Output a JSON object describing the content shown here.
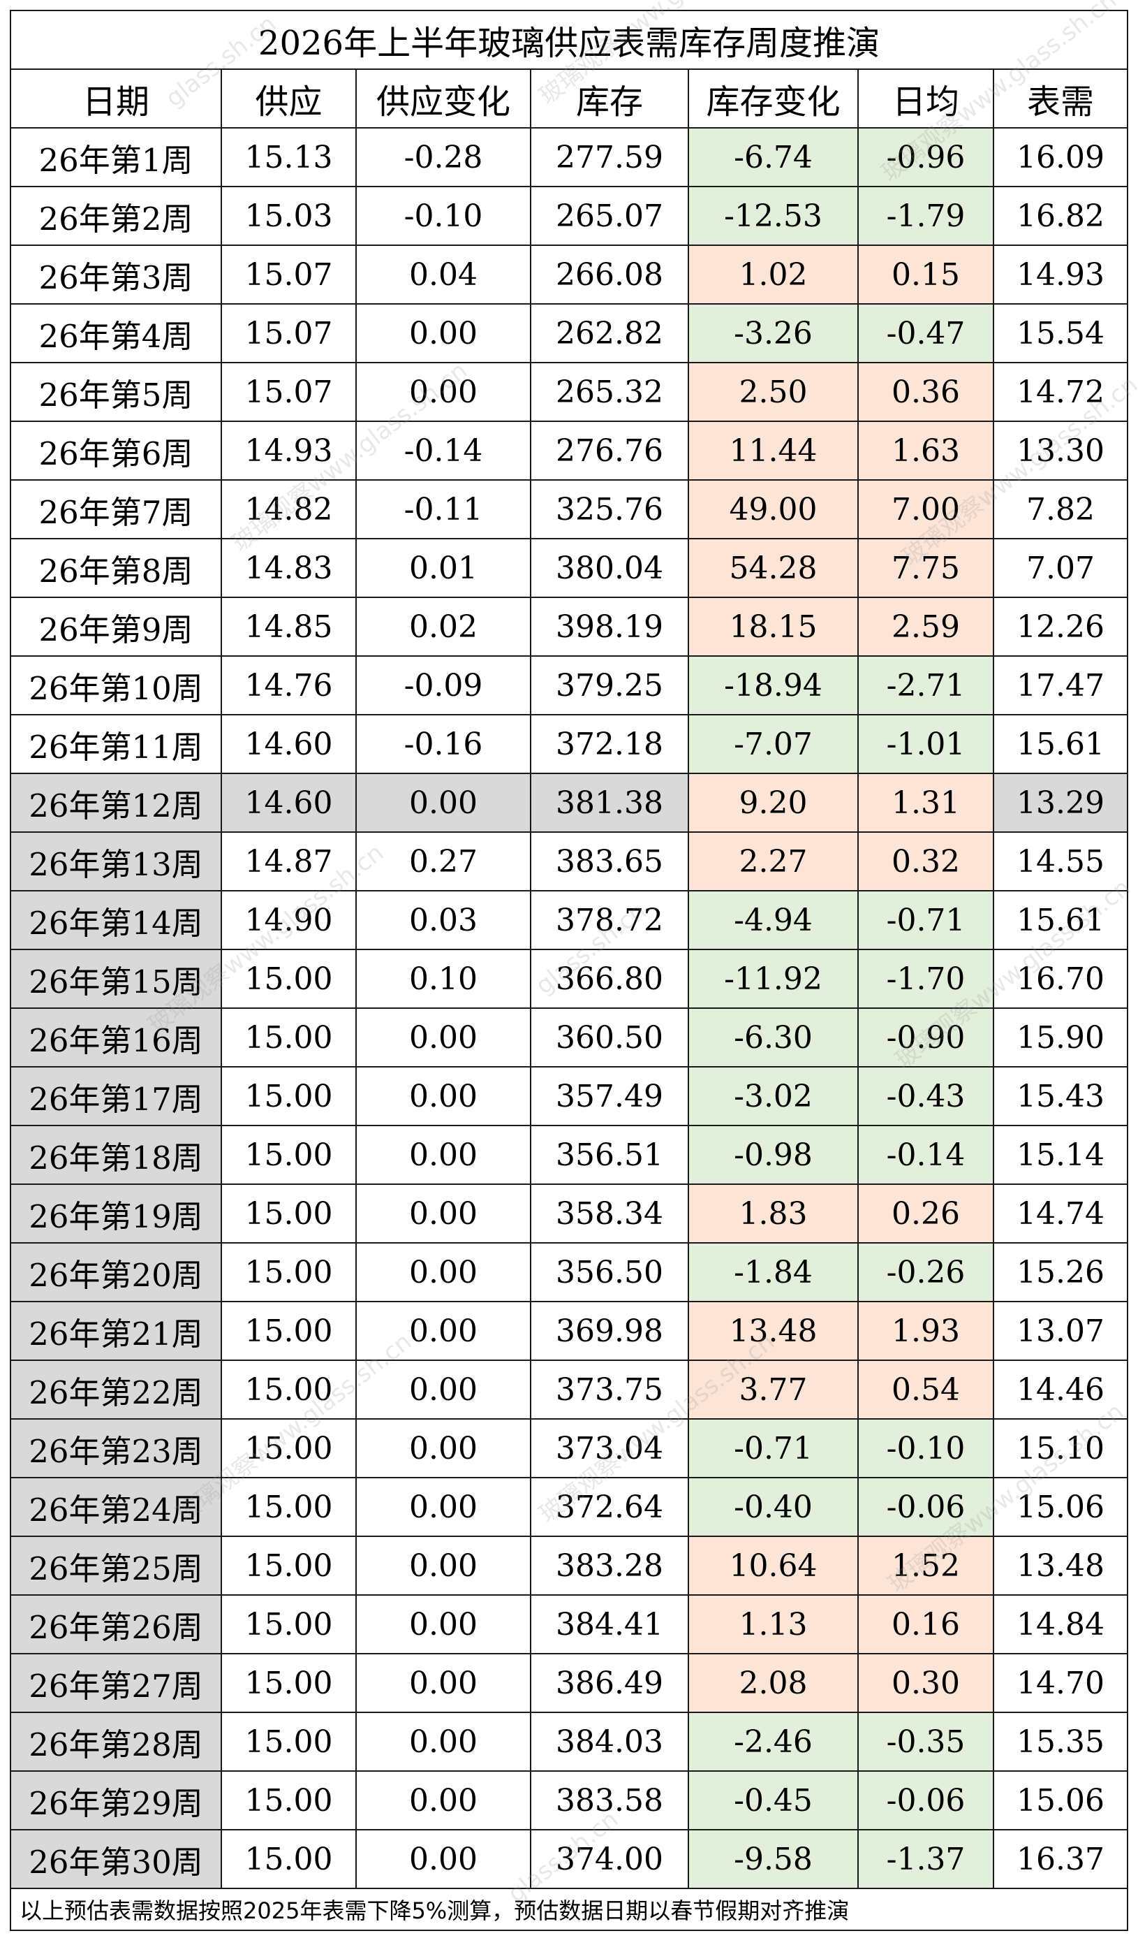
{
  "title": "2026年上半年玻璃供应表需库存周度推演",
  "headers": [
    "日期",
    "供应",
    "供应变化",
    "库存",
    "库存变化",
    "日均",
    "表需"
  ],
  "rows": [
    [
      "26年第1周",
      "15.13",
      "-0.28",
      "277.59",
      "-6.74",
      "-0.96",
      "16.09"
    ],
    [
      "26年第2周",
      "15.03",
      "-0.10",
      "265.07",
      "-12.53",
      "-1.79",
      "16.82"
    ],
    [
      "26年第3周",
      "15.07",
      "0.04",
      "266.08",
      "1.02",
      "0.15",
      "14.93"
    ],
    [
      "26年第4周",
      "15.07",
      "0.00",
      "262.82",
      "-3.26",
      "-0.47",
      "15.54"
    ],
    [
      "26年第5周",
      "15.07",
      "0.00",
      "265.32",
      "2.50",
      "0.36",
      "14.72"
    ],
    [
      "26年第6周",
      "14.93",
      "-0.14",
      "276.76",
      "11.44",
      "1.63",
      "13.30"
    ],
    [
      "26年第7周",
      "14.82",
      "-0.11",
      "325.76",
      "49.00",
      "7.00",
      "7.82"
    ],
    [
      "26年第8周",
      "14.83",
      "0.01",
      "380.04",
      "54.28",
      "7.75",
      "7.07"
    ],
    [
      "26年第9周",
      "14.85",
      "0.02",
      "398.19",
      "18.15",
      "2.59",
      "12.26"
    ],
    [
      "26年第10周",
      "14.76",
      "-0.09",
      "379.25",
      "-18.94",
      "-2.71",
      "17.47"
    ],
    [
      "26年第11周",
      "14.60",
      "-0.16",
      "372.18",
      "-7.07",
      "-1.01",
      "15.61"
    ],
    [
      "26年第12周",
      "14.60",
      "0.00",
      "381.38",
      "9.20",
      "1.31",
      "13.29"
    ],
    [
      "26年第13周",
      "14.87",
      "0.27",
      "383.65",
      "2.27",
      "0.32",
      "14.55"
    ],
    [
      "26年第14周",
      "14.90",
      "0.03",
      "378.72",
      "-4.94",
      "-0.71",
      "15.61"
    ],
    [
      "26年第15周",
      "15.00",
      "0.10",
      "366.80",
      "-11.92",
      "-1.70",
      "16.70"
    ],
    [
      "26年第16周",
      "15.00",
      "0.00",
      "360.50",
      "-6.30",
      "-0.90",
      "15.90"
    ],
    [
      "26年第17周",
      "15.00",
      "0.00",
      "357.49",
      "-3.02",
      "-0.43",
      "15.43"
    ],
    [
      "26年第18周",
      "15.00",
      "0.00",
      "356.51",
      "-0.98",
      "-0.14",
      "15.14"
    ],
    [
      "26年第19周",
      "15.00",
      "0.00",
      "358.34",
      "1.83",
      "0.26",
      "14.74"
    ],
    [
      "26年第20周",
      "15.00",
      "0.00",
      "356.50",
      "-1.84",
      "-0.26",
      "15.26"
    ],
    [
      "26年第21周",
      "15.00",
      "0.00",
      "369.98",
      "13.48",
      "1.93",
      "13.07"
    ],
    [
      "26年第22周",
      "15.00",
      "0.00",
      "373.75",
      "3.77",
      "0.54",
      "14.46"
    ],
    [
      "26年第23周",
      "15.00",
      "0.00",
      "373.04",
      "-0.71",
      "-0.10",
      "15.10"
    ],
    [
      "26年第24周",
      "15.00",
      "0.00",
      "372.64",
      "-0.40",
      "-0.06",
      "15.06"
    ],
    [
      "26年第25周",
      "15.00",
      "0.00",
      "383.28",
      "10.64",
      "1.52",
      "13.48"
    ],
    [
      "26年第26周",
      "15.00",
      "0.00",
      "384.41",
      "1.13",
      "0.16",
      "14.84"
    ],
    [
      "26年第27周",
      "15.00",
      "0.00",
      "386.49",
      "2.08",
      "0.30",
      "14.70"
    ],
    [
      "26年第28周",
      "15.00",
      "0.00",
      "384.03",
      "-2.46",
      "-0.35",
      "15.35"
    ],
    [
      "26年第29周",
      "15.00",
      "0.00",
      "383.58",
      "-0.45",
      "-0.06",
      "15.06"
    ],
    [
      "26年第30周",
      "15.00",
      "0.00",
      "374.00",
      "-9.58",
      "-1.37",
      "16.37"
    ]
  ],
  "highlighted_row_index": 11,
  "gray_date_from_index": 11,
  "colors": {
    "negative_change": "#e2efda",
    "positive_change": "#fce4d6",
    "highlight": "#d9d9d9"
  },
  "footnote": "以上预估表需数据按照2025年表需下降5%测算，预估数据日期以春节假期对齐推演",
  "watermarks": [
    "glass.sh.cn",
    "玻璃观察www.glass.sh.cn"
  ]
}
